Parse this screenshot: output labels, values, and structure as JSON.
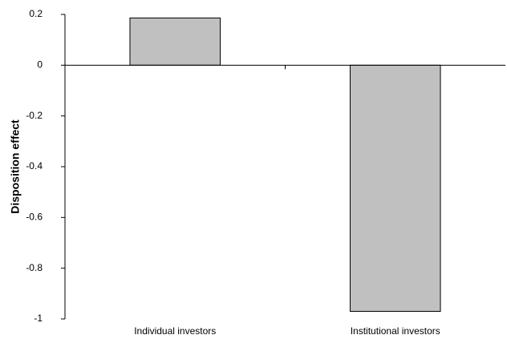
{
  "chart_data": {
    "type": "bar",
    "y_label": "Disposition effect",
    "categories": [
      "Individual investors",
      "Institutional investors"
    ],
    "values": [
      0.186,
      -0.97
    ],
    "color": "#c0c0c0",
    "ylim": [
      -1,
      0.2
    ],
    "yticks": [
      0.2,
      0,
      -0.2,
      -0.4,
      -0.6,
      -0.8,
      -1
    ],
    "grid": false
  }
}
